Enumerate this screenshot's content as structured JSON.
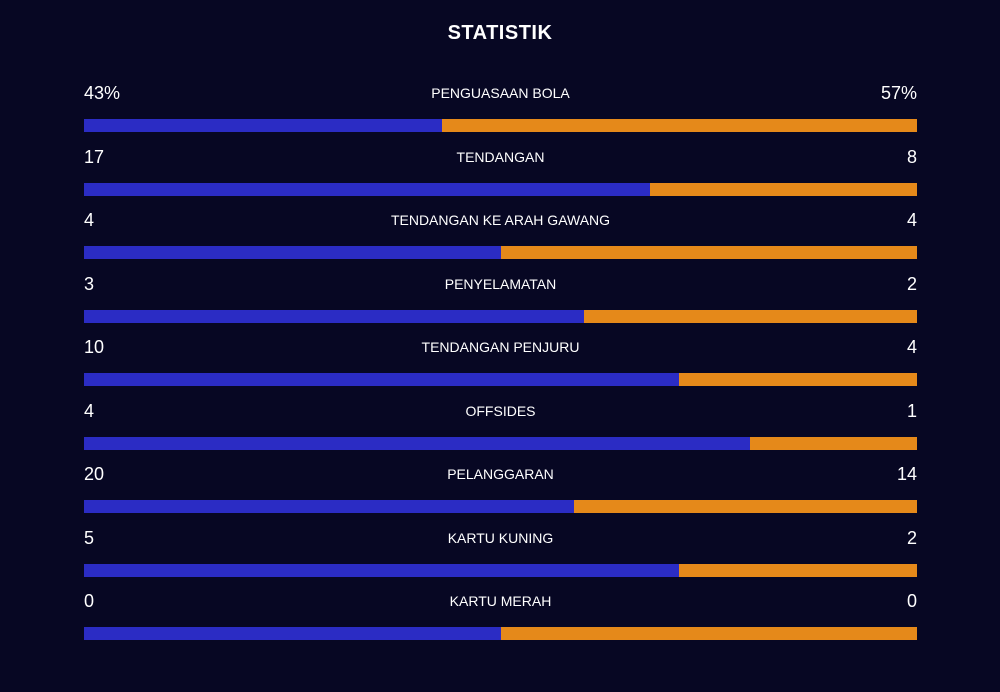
{
  "title": "STATISTIK",
  "colors": {
    "home": "#2b2cc4",
    "away": "#e5891a",
    "background": "#070723"
  },
  "stats": [
    {
      "label": "PENGUASAAN BOLA",
      "home": "43%",
      "away": "57%",
      "home_share": 0.43
    },
    {
      "label": "TENDANGAN",
      "home": "17",
      "away": "8",
      "home_share": 0.68
    },
    {
      "label": "TENDANGAN KE ARAH GAWANG",
      "home": "4",
      "away": "4",
      "home_share": 0.5
    },
    {
      "label": "PENYELAMATAN",
      "home": "3",
      "away": "2",
      "home_share": 0.6
    },
    {
      "label": "TENDANGAN PENJURU",
      "home": "10",
      "away": "4",
      "home_share": 0.714
    },
    {
      "label": "OFFSIDES",
      "home": "4",
      "away": "1",
      "home_share": 0.8
    },
    {
      "label": "PELANGGARAN",
      "home": "20",
      "away": "14",
      "home_share": 0.588
    },
    {
      "label": "KARTU KUNING",
      "home": "5",
      "away": "2",
      "home_share": 0.714
    },
    {
      "label": "KARTU MERAH",
      "home": "0",
      "away": "0",
      "home_share": 0.5
    }
  ]
}
